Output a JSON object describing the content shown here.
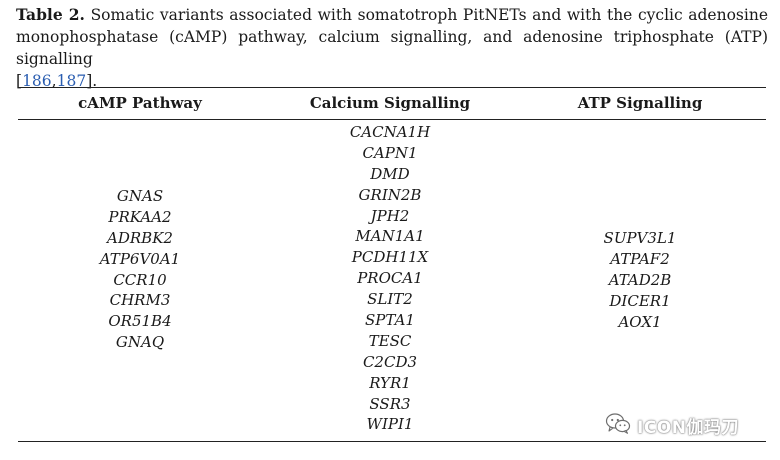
{
  "caption": {
    "label": "Table 2.",
    "text": "Somatic variants associated with somatotroph PitNETs and with the cyclic adenosine monophosphatase (cAMP) pathway, calcium signalling, and adenosine triphosphate (ATP) signalling",
    "ref_open": "[",
    "ref_a": "186",
    "ref_sep": ",",
    "ref_b": "187",
    "ref_close": "]."
  },
  "table": {
    "headers": [
      "cAMP Pathway",
      "Calcium Signalling",
      "ATP Signalling"
    ],
    "columns": [
      [
        "GNAS",
        "PRKAA2",
        "ADRBK2",
        "ATP6V0A1",
        "CCR10",
        "CHRM3",
        "OR51B4",
        "GNAQ"
      ],
      [
        "CACNA1H",
        "CAPN1",
        "DMD",
        "GRIN2B",
        "JPH2",
        "MAN1A1",
        "PCDH11X",
        "PROCA1",
        "SLIT2",
        "SPTA1",
        "TESC",
        "C2CD3",
        "RYR1",
        "SSR3",
        "WIPI1"
      ],
      [
        "SUPV3L1",
        "ATPAF2",
        "ATAD2B",
        "DICER1",
        "AOX1"
      ]
    ]
  },
  "watermark": {
    "text": "ICON伽玛刀",
    "icon": "wechat-icon"
  }
}
